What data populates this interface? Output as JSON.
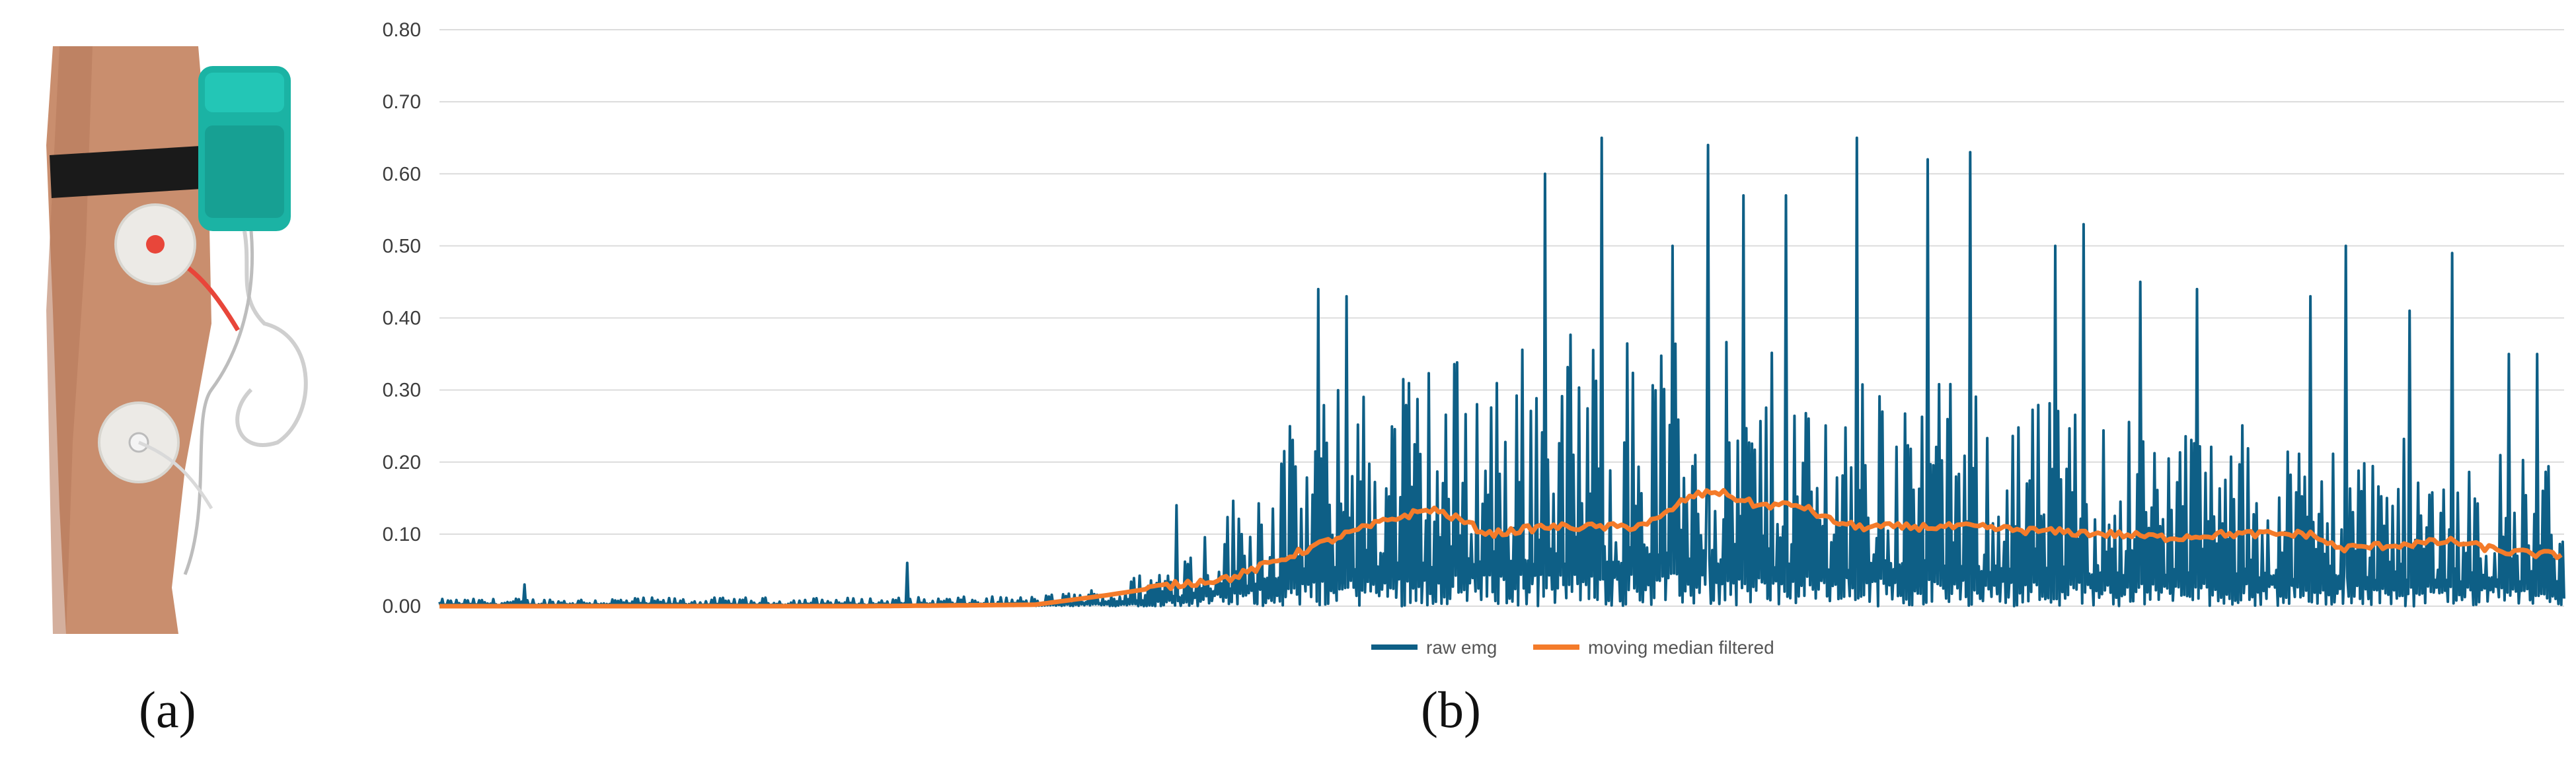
{
  "panels": {
    "a_label": "(a)",
    "b_label": "(b)"
  },
  "photo": {
    "description_icon": "leg-with-emg-electrodes-icon",
    "colors": {
      "sensor": "#1bb3a4",
      "strap": "#1a1a1a",
      "skin": "#c98e6e",
      "electrode": "#eceae6",
      "lead_red": "#e8463a"
    }
  },
  "chart_data": {
    "type": "line",
    "ylim": [
      0,
      0.8
    ],
    "yticks": [
      "0.00",
      "0.10",
      "0.20",
      "0.30",
      "0.40",
      "0.50",
      "0.60",
      "0.70",
      "0.80"
    ],
    "xlabel": "",
    "ylabel": "",
    "grid": true,
    "legend_position": "bottom-center",
    "n_samples": 1500,
    "series": [
      {
        "name": "raw emg",
        "color": "#0e5f86",
        "envelope": [
          [
            0,
            0.01
          ],
          [
            120,
            0.012
          ],
          [
            300,
            0.012
          ],
          [
            420,
            0.014
          ],
          [
            480,
            0.03
          ],
          [
            520,
            0.08
          ],
          [
            560,
            0.16
          ],
          [
            600,
            0.26
          ],
          [
            640,
            0.32
          ],
          [
            700,
            0.36
          ],
          [
            760,
            0.38
          ],
          [
            820,
            0.4
          ],
          [
            900,
            0.37
          ],
          [
            1000,
            0.33
          ],
          [
            1100,
            0.3
          ],
          [
            1200,
            0.28
          ],
          [
            1300,
            0.25
          ],
          [
            1400,
            0.23
          ],
          [
            1500,
            0.22
          ]
        ],
        "peaks": [
          [
            2,
            0.01
          ],
          [
            60,
            0.03
          ],
          [
            330,
            0.06
          ],
          [
            520,
            0.14
          ],
          [
            620,
            0.44
          ],
          [
            640,
            0.43
          ],
          [
            780,
            0.6
          ],
          [
            820,
            0.65
          ],
          [
            870,
            0.5
          ],
          [
            895,
            0.64
          ],
          [
            920,
            0.57
          ],
          [
            950,
            0.57
          ],
          [
            1000,
            0.65
          ],
          [
            1050,
            0.62
          ],
          [
            1080,
            0.63
          ],
          [
            1140,
            0.5
          ],
          [
            1160,
            0.53
          ],
          [
            1200,
            0.45
          ],
          [
            1240,
            0.44
          ],
          [
            1320,
            0.43
          ],
          [
            1345,
            0.5
          ],
          [
            1390,
            0.41
          ],
          [
            1420,
            0.49
          ],
          [
            1460,
            0.35
          ],
          [
            1480,
            0.35
          ]
        ]
      },
      {
        "name": "moving median filtered",
        "color": "#f47b2a",
        "points": [
          [
            0,
            0.0
          ],
          [
            300,
            0.0
          ],
          [
            420,
            0.002
          ],
          [
            470,
            0.015
          ],
          [
            520,
            0.03
          ],
          [
            560,
            0.04
          ],
          [
            600,
            0.07
          ],
          [
            640,
            0.1
          ],
          [
            670,
            0.12
          ],
          [
            700,
            0.135
          ],
          [
            720,
            0.12
          ],
          [
            740,
            0.1
          ],
          [
            780,
            0.11
          ],
          [
            820,
            0.11
          ],
          [
            840,
            0.11
          ],
          [
            860,
            0.12
          ],
          [
            880,
            0.15
          ],
          [
            900,
            0.16
          ],
          [
            930,
            0.14
          ],
          [
            960,
            0.14
          ],
          [
            980,
            0.12
          ],
          [
            1000,
            0.11
          ],
          [
            1050,
            0.11
          ],
          [
            1080,
            0.11
          ],
          [
            1120,
            0.105
          ],
          [
            1180,
            0.1
          ],
          [
            1220,
            0.095
          ],
          [
            1260,
            0.1
          ],
          [
            1300,
            0.1
          ],
          [
            1320,
            0.1
          ],
          [
            1340,
            0.08
          ],
          [
            1380,
            0.085
          ],
          [
            1420,
            0.09
          ],
          [
            1460,
            0.075
          ],
          [
            1500,
            0.07
          ]
        ]
      }
    ]
  }
}
